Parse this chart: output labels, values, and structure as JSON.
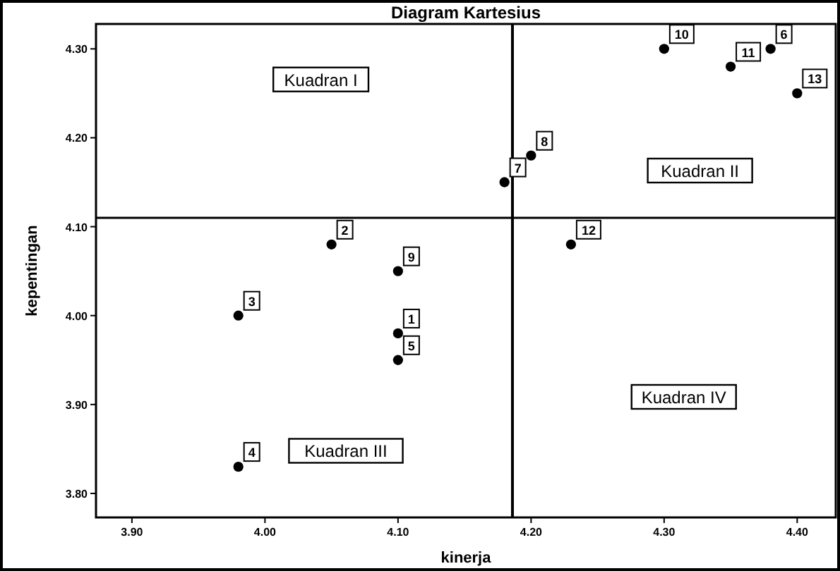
{
  "chart_data": {
    "type": "scatter",
    "title": "Diagram Kartesius",
    "xlabel": "kinerja",
    "ylabel": "kepentingan",
    "x": [
      4.1,
      4.05,
      3.98,
      3.98,
      4.1,
      4.38,
      4.18,
      4.2,
      4.1,
      4.3,
      4.35,
      4.23,
      4.4
    ],
    "values": [
      3.98,
      4.08,
      4.0,
      3.83,
      3.95,
      4.3,
      4.15,
      4.18,
      4.05,
      4.3,
      4.28,
      4.08,
      4.25
    ],
    "color": "#000000",
    "marker": "circle",
    "xlim": [
      3.873,
      4.429
    ],
    "ylim": [
      3.773,
      4.328
    ],
    "xticks": [
      {
        "value": 3.9,
        "label": "3.90"
      },
      {
        "value": 4.0,
        "label": "4.00"
      },
      {
        "value": 4.1,
        "label": "4.10"
      },
      {
        "value": 4.2,
        "label": "4.20"
      },
      {
        "value": 4.3,
        "label": "4.30"
      },
      {
        "value": 4.4,
        "label": "4.40"
      }
    ],
    "yticks": [
      {
        "value": 3.8,
        "label": "3.80"
      },
      {
        "value": 3.9,
        "label": "3.90"
      },
      {
        "value": 4.0,
        "label": "4.00"
      },
      {
        "value": 4.1,
        "label": "4.10"
      },
      {
        "value": 4.2,
        "label": "4.20"
      },
      {
        "value": 4.3,
        "label": "4.30"
      }
    ],
    "ref_lines": [
      {
        "axis": "x",
        "value": 4.186,
        "color": "#000000"
      },
      {
        "axis": "y",
        "value": 4.11,
        "color": "#000000"
      }
    ],
    "annotations": [
      "Kuadran I",
      "Kuadran II",
      "Kuadran III",
      "Kuadran IV",
      {
        "text": "1",
        "x": 4.1,
        "y": 3.98
      },
      {
        "text": "2",
        "x": 4.05,
        "y": 4.08
      },
      {
        "text": "3",
        "x": 3.98,
        "y": 4.0
      },
      {
        "text": "4",
        "x": 3.98,
        "y": 3.83
      },
      {
        "text": "5",
        "x": 4.1,
        "y": 3.95
      },
      {
        "text": "6",
        "x": 4.38,
        "y": 4.3
      },
      {
        "text": "7",
        "x": 4.18,
        "y": 4.15
      },
      {
        "text": "8",
        "x": 4.2,
        "y": 4.18
      },
      {
        "text": "9",
        "x": 4.1,
        "y": 4.05
      },
      {
        "text": "10",
        "x": 4.3,
        "y": 4.3
      },
      {
        "text": "11",
        "x": 4.35,
        "y": 4.28
      },
      {
        "text": "12",
        "x": 4.23,
        "y": 4.08
      },
      {
        "text": "13",
        "x": 4.4,
        "y": 4.25
      }
    ],
    "grid": false
  }
}
